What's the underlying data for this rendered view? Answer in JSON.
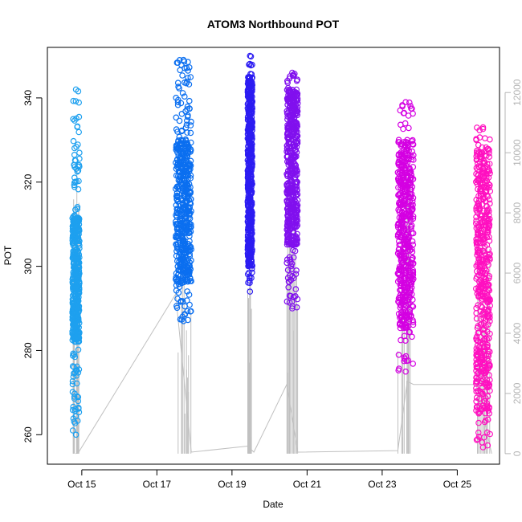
{
  "chart_data": {
    "type": "scatter",
    "title": "ATOM3 Northbound POT",
    "xlabel": "Date",
    "ylabel": "POT",
    "x_ticks": [
      "Oct 15",
      "Oct 17",
      "Oct 19",
      "Oct 21",
      "Oct 23",
      "Oct 25"
    ],
    "xlim": [
      "Oct 14 2:00",
      "Oct 26 3:00"
    ],
    "ylim": [
      253,
      352
    ],
    "y_ticks": [
      260,
      280,
      300,
      320,
      340
    ],
    "y2lim": [
      -350,
      13500
    ],
    "y2_ticks": [
      0,
      2000,
      4000,
      6000,
      8000,
      10000,
      12000
    ],
    "secondary_axis_color": "#b5b5b5",
    "grid": false,
    "legend": "none",
    "point_series": [
      {
        "period": [
          "Oct 14 18:00",
          "Oct 14 22:30"
        ],
        "pot_range": [
          260,
          342
        ],
        "color": "#1ea0ef",
        "dense_range": [
          282,
          312
        ]
      },
      {
        "period": [
          "Oct 17 12:00",
          "Oct 17 22:00"
        ],
        "pot_range": [
          287,
          349
        ],
        "color": "#0b6ff0",
        "dense_range": [
          296,
          330
        ]
      },
      {
        "period": [
          "Oct 19 10:00",
          "Oct 19 13:00"
        ],
        "pot_range": [
          294,
          350
        ],
        "color": "#2c1cf2",
        "dense_range": [
          300,
          345
        ]
      },
      {
        "period": [
          "Oct 20 11:00",
          "Oct 20 18:00"
        ],
        "pot_range": [
          290,
          346
        ],
        "color": "#8110ee",
        "dense_range": [
          305,
          342
        ]
      },
      {
        "period": [
          "Oct 23 10:00",
          "Oct 23 20:00"
        ],
        "pot_range": [
          275,
          339
        ],
        "color": "#d400e2",
        "dense_range": [
          285,
          330
        ]
      },
      {
        "period": [
          "Oct 25 12:00",
          "Oct 25 21:00"
        ],
        "pot_range": [
          257,
          333
        ],
        "color": "#ff10c0",
        "dense_range": [
          265,
          328
        ]
      }
    ],
    "cumulative_line": {
      "axis": "secondary",
      "color": "#c0c0c0",
      "points": [
        {
          "x": "Oct 14 20:00",
          "y": 0
        },
        {
          "x": "Oct 14 22:00",
          "y": 50
        },
        {
          "x": "Oct 17 12:00",
          "y": 5300
        },
        {
          "x": "Oct 17 22:00",
          "y": 50
        },
        {
          "x": "Oct 19 10:00",
          "y": 250
        },
        {
          "x": "Oct 19 14:00",
          "y": 50
        },
        {
          "x": "Oct 20 11:00",
          "y": 2300
        },
        {
          "x": "Oct 20 18:00",
          "y": 50
        },
        {
          "x": "Oct 23 10:00",
          "y": 100
        },
        {
          "x": "Oct 23 16:00",
          "y": 2400
        },
        {
          "x": "Oct 23 20:00",
          "y": 2300
        },
        {
          "x": "Oct 25 12:00",
          "y": 2300
        },
        {
          "x": "Oct 25 22:00",
          "y": 0
        }
      ]
    }
  }
}
